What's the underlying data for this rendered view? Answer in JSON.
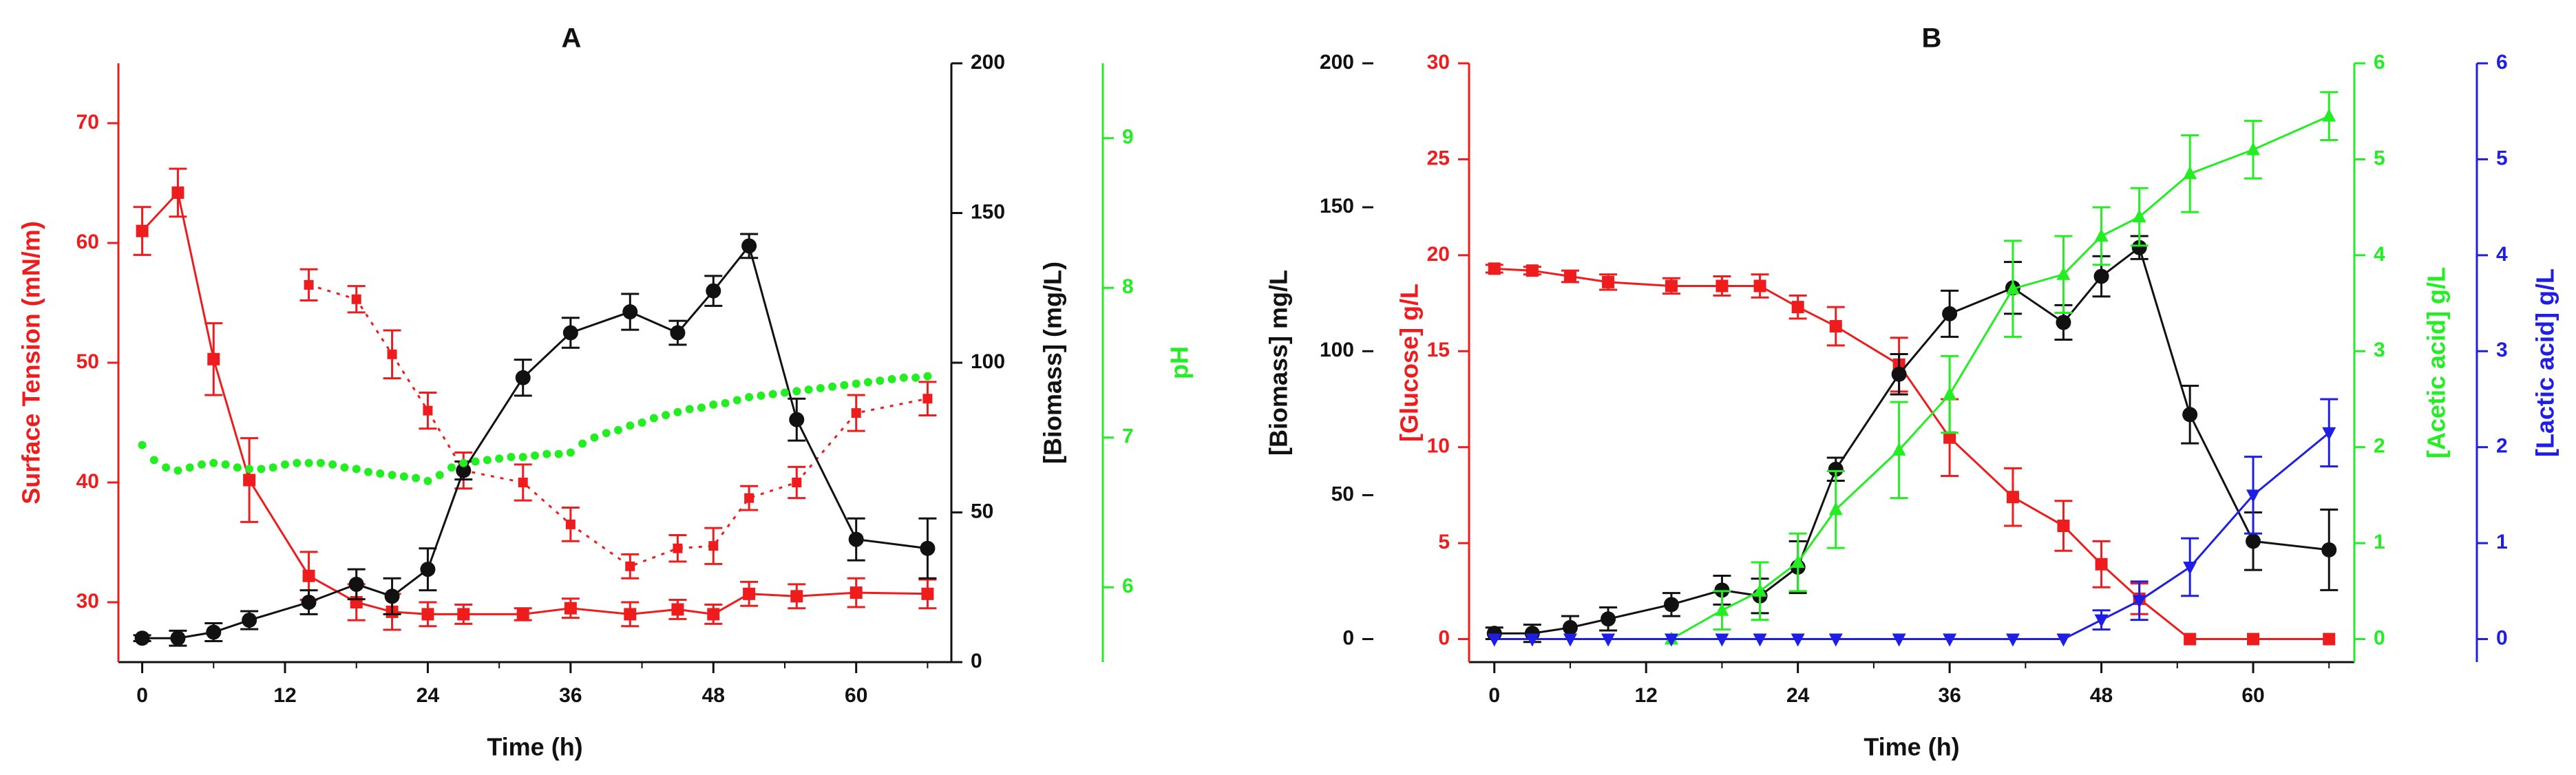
{
  "colors": {
    "red": "#ee1c1c",
    "black": "#111111",
    "green": "#22ee22",
    "blue": "#1e1ee6"
  },
  "chart_data": [
    {
      "panel": "A",
      "type": "line",
      "title": "A",
      "xlabel": "Time (h)",
      "x_ticks": [
        0,
        12,
        24,
        36,
        48,
        60
      ],
      "xlim": [
        -2,
        68
      ],
      "axes": {
        "surface_tension": {
          "label": "Surface Tension (mN/m)",
          "ylim": [
            25,
            75
          ],
          "ticks": [
            30,
            40,
            50,
            60,
            70
          ],
          "color": "red",
          "side": "left"
        },
        "biomass": {
          "label": "[Biomass] (mg/L)",
          "ylim": [
            0,
            200
          ],
          "ticks": [
            0,
            50,
            100,
            150,
            200
          ],
          "color": "black",
          "side": "right"
        },
        "ph": {
          "label": "pH",
          "ylim": [
            5.5,
            9.5
          ],
          "ticks": [
            6,
            7,
            8,
            9
          ],
          "color": "green",
          "side": "right-outer"
        }
      },
      "series": [
        {
          "axis": "surface_tension",
          "color": "red",
          "style": "solid",
          "marker": "square",
          "x": [
            0,
            3,
            6,
            9,
            14,
            18,
            21,
            24,
            27,
            32,
            36,
            41,
            45,
            48,
            51,
            55,
            60,
            66
          ],
          "y": [
            61,
            64.2,
            50.3,
            40.2,
            32.2,
            30,
            29.2,
            29,
            29,
            29,
            29.5,
            29,
            29.4,
            29,
            30.7,
            30.5,
            30.8,
            30.7
          ],
          "err": [
            2,
            2,
            3,
            3.5,
            2,
            1.5,
            1.5,
            1,
            0.8,
            0.5,
            0.8,
            1,
            0.8,
            0.8,
            1,
            1,
            1.2,
            1.2
          ]
        },
        {
          "axis": "surface_tension",
          "color": "red",
          "style": "dotted",
          "marker": "square",
          "x": [
            14,
            18,
            21,
            24,
            27,
            32,
            36,
            41,
            45,
            48,
            51,
            55,
            60,
            66
          ],
          "y": [
            56.5,
            55.3,
            50.7,
            46,
            41,
            40,
            36.5,
            33,
            34.5,
            34.7,
            38.7,
            40,
            45.8,
            47
          ],
          "err": [
            1.3,
            1.1,
            2,
            1.5,
            1.5,
            1.5,
            1.4,
            1,
            1.1,
            1.5,
            1,
            1.3,
            1.5,
            1.4
          ]
        },
        {
          "axis": "biomass",
          "color": "black",
          "style": "solid",
          "marker": "circle",
          "x": [
            0,
            3,
            6,
            9,
            14,
            18,
            21,
            24,
            27,
            32,
            36,
            41,
            45,
            48,
            51,
            55,
            60,
            66
          ],
          "y": [
            8,
            8,
            10,
            14,
            20,
            26,
            22,
            31,
            64,
            95,
            110,
            117,
            110,
            124,
            139,
            81,
            41,
            38
          ],
          "err": [
            1,
            2.5,
            3,
            3,
            4,
            5,
            6,
            7,
            3,
            6,
            5,
            6,
            4,
            5,
            4,
            7,
            7,
            10
          ]
        },
        {
          "axis": "ph",
          "color": "green",
          "style": "dotted",
          "marker": "circle",
          "x": [
            0,
            1,
            2,
            3,
            4,
            5,
            6,
            7,
            8,
            9,
            10,
            11,
            12,
            13,
            14,
            15,
            16,
            17,
            18,
            19,
            20,
            21,
            22,
            23,
            24,
            25,
            26,
            27,
            28,
            29,
            30,
            31,
            32,
            33,
            34,
            35,
            36,
            37,
            38,
            39,
            40,
            41,
            42,
            43,
            44,
            45,
            46,
            47,
            48,
            49,
            50,
            51,
            52,
            53,
            54,
            55,
            56,
            57,
            58,
            59,
            60,
            61,
            62,
            63,
            64,
            65,
            66
          ],
          "y": [
            6.95,
            6.85,
            6.8,
            6.78,
            6.8,
            6.82,
            6.83,
            6.82,
            6.8,
            6.79,
            6.79,
            6.8,
            6.82,
            6.83,
            6.83,
            6.83,
            6.82,
            6.8,
            6.79,
            6.77,
            6.76,
            6.75,
            6.74,
            6.73,
            6.71,
            6.75,
            6.8,
            6.83,
            6.84,
            6.85,
            6.86,
            6.87,
            6.87,
            6.88,
            6.89,
            6.89,
            6.9,
            6.96,
            7.0,
            7.03,
            7.05,
            7.08,
            7.1,
            7.13,
            7.15,
            7.17,
            7.19,
            7.2,
            7.22,
            7.23,
            7.25,
            7.27,
            7.28,
            7.29,
            7.3,
            7.31,
            7.32,
            7.33,
            7.34,
            7.35,
            7.36,
            7.37,
            7.38,
            7.39,
            7.4,
            7.4,
            7.41
          ]
        }
      ]
    },
    {
      "panel": "B",
      "type": "line",
      "title": "B",
      "xlabel": "Time (h)",
      "x_ticks": [
        0,
        12,
        24,
        36,
        48,
        60
      ],
      "xlim": [
        -2,
        68
      ],
      "axes": {
        "biomass": {
          "label": "[Biomass] mg/L",
          "ylim": [
            -8,
            200
          ],
          "ticks": [
            0,
            50,
            100,
            150,
            200
          ],
          "color": "black",
          "side": "left-outer"
        },
        "glucose": {
          "label": "[Glucose] g/L",
          "ylim": [
            -1.2,
            30
          ],
          "ticks": [
            0,
            5,
            10,
            15,
            20,
            25,
            30
          ],
          "color": "red",
          "side": "left"
        },
        "acetic": {
          "label": "[Acetic acid] g/L",
          "ylim": [
            -0.24,
            6
          ],
          "ticks": [
            0,
            1,
            2,
            3,
            4,
            5,
            6
          ],
          "color": "green",
          "side": "right"
        },
        "lactic": {
          "label": "[Lactic acid] g/L",
          "ylim": [
            -0.24,
            6
          ],
          "ticks": [
            0,
            1,
            2,
            3,
            4,
            5,
            6
          ],
          "color": "blue",
          "side": "right-outer"
        }
      },
      "series": [
        {
          "axis": "glucose",
          "color": "red",
          "style": "solid",
          "marker": "square",
          "x": [
            0,
            3,
            6,
            9,
            14,
            18,
            21,
            24,
            27,
            32,
            36,
            41,
            45,
            48,
            51,
            55,
            60,
            66
          ],
          "y": [
            19.3,
            19.2,
            18.9,
            18.6,
            18.4,
            18.4,
            18.4,
            17.3,
            16.3,
            14.3,
            10.5,
            7.4,
            5.9,
            3.9,
            2.1,
            0,
            0,
            0
          ],
          "err": [
            0.2,
            0.2,
            0.3,
            0.4,
            0.4,
            0.5,
            0.6,
            0.6,
            1,
            1.4,
            2,
            1.5,
            1.3,
            1.2,
            0.8,
            0,
            0,
            0
          ]
        },
        {
          "axis": "biomass",
          "color": "black",
          "style": "solid",
          "marker": "circle",
          "x": [
            0,
            3,
            6,
            9,
            14,
            18,
            21,
            24,
            27,
            32,
            36,
            41,
            45,
            48,
            51,
            55,
            60,
            66
          ],
          "y": [
            2,
            2,
            4,
            7,
            12,
            17,
            15,
            25,
            59,
            92,
            113,
            122,
            110,
            126,
            136,
            78,
            34,
            31
          ],
          "err": [
            2,
            3,
            4,
            4,
            4,
            5,
            6,
            9,
            4,
            7,
            8,
            9,
            6,
            7,
            4,
            10,
            10,
            14
          ]
        },
        {
          "axis": "acetic",
          "color": "green",
          "style": "solid",
          "marker": "triangle-up",
          "x": [
            14,
            18,
            21,
            24,
            27,
            32,
            36,
            41,
            45,
            48,
            51,
            55,
            60,
            66
          ],
          "y": [
            0,
            0.3,
            0.5,
            0.8,
            1.35,
            1.97,
            2.55,
            3.65,
            3.8,
            4.2,
            4.4,
            4.85,
            5.1,
            5.45
          ],
          "err": [
            0,
            0.2,
            0.3,
            0.3,
            0.4,
            0.5,
            0.4,
            0.5,
            0.4,
            0.3,
            0.3,
            0.4,
            0.3,
            0.25
          ]
        },
        {
          "axis": "lactic",
          "color": "blue",
          "style": "solid",
          "marker": "triangle-down",
          "x": [
            0,
            3,
            6,
            9,
            14,
            18,
            21,
            24,
            27,
            32,
            36,
            41,
            45,
            48,
            51,
            55,
            60,
            66
          ],
          "y": [
            0,
            0,
            0,
            0,
            0,
            0,
            0,
            0,
            0,
            0,
            0,
            0,
            0,
            0.2,
            0.4,
            0.75,
            1.5,
            2.15
          ],
          "err": [
            0,
            0,
            0,
            0,
            0,
            0,
            0,
            0,
            0,
            0,
            0,
            0,
            0,
            0.1,
            0.2,
            0.3,
            0.4,
            0.35
          ]
        }
      ]
    }
  ]
}
